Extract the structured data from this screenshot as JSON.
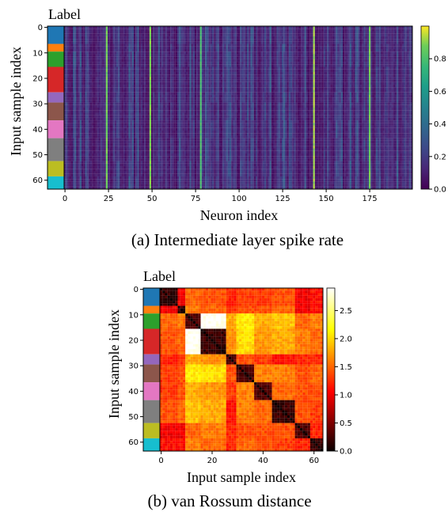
{
  "chart_data": [
    {
      "type": "heatmap",
      "title": "(a) Intermediate layer spike rate",
      "label_strip_title": "Label",
      "xlabel": "Neuron index",
      "ylabel": "Input sample index",
      "xlim": [
        -0.5,
        199.5
      ],
      "ylim": [
        63.5,
        -0.5
      ],
      "xticks": [
        "0",
        "25",
        "50",
        "75",
        "100",
        "125",
        "150",
        "175"
      ],
      "yticks": [
        "0",
        "10",
        "20",
        "30",
        "40",
        "50",
        "60"
      ],
      "colorbar": {
        "colormap": "viridis",
        "range": [
          0,
          1
        ],
        "ticks": [
          "0.0",
          "0.2",
          "0.4",
          "0.6",
          "0.8"
        ]
      },
      "matrix_size": [
        64,
        200
      ],
      "bright_columns": [
        {
          "neuron": 24,
          "rate": 0.9
        },
        {
          "neuron": 49,
          "rate": 0.92
        },
        {
          "neuron": 78,
          "rate": 0.82
        },
        {
          "neuron": 143,
          "rate": 0.95
        },
        {
          "neuron": 175,
          "rate": 0.9
        }
      ],
      "background_rate": 0.15,
      "grid": false
    },
    {
      "type": "heatmap",
      "title": "(b) van Rossum distance",
      "label_strip_title": "Label",
      "xlabel": "Input sample index",
      "ylabel": "Input sample index",
      "xlim": [
        -0.5,
        63.5
      ],
      "ylim": [
        63.5,
        -0.5
      ],
      "xticks": [
        "0",
        "20",
        "40",
        "60"
      ],
      "yticks": [
        "0",
        "10",
        "20",
        "30",
        "40",
        "50",
        "60"
      ],
      "colorbar": {
        "colormap": "hot",
        "range": [
          0,
          2.9
        ],
        "ticks": [
          "0.0",
          "0.5",
          "1.0",
          "1.5",
          "2.0",
          "2.5"
        ]
      },
      "matrix_size": [
        64,
        64
      ],
      "grid": false
    }
  ],
  "class_groups": [
    {
      "start": 0,
      "end": 7,
      "color": "#1f77b4"
    },
    {
      "start": 7,
      "end": 10,
      "color": "#ff7f0e"
    },
    {
      "start": 10,
      "end": 16,
      "color": "#2ca02c"
    },
    {
      "start": 16,
      "end": 26,
      "color": "#d62728"
    },
    {
      "start": 26,
      "end": 30,
      "color": "#9467bd"
    },
    {
      "start": 30,
      "end": 37,
      "color": "#8c564b"
    },
    {
      "start": 37,
      "end": 44,
      "color": "#e377c2"
    },
    {
      "start": 44,
      "end": 53,
      "color": "#7f7f7f"
    },
    {
      "start": 53,
      "end": 59,
      "color": "#bcbd22"
    },
    {
      "start": 59,
      "end": 64,
      "color": "#17becf"
    }
  ],
  "class_distance_matrix": [
    [
      0.2,
      1.0,
      1.5,
      1.4,
      1.2,
      1.3,
      1.3,
      1.4,
      1.0,
      1.1
    ],
    [
      1.0,
      0.2,
      1.6,
      1.5,
      1.3,
      1.4,
      1.4,
      1.5,
      1.0,
      1.1
    ],
    [
      1.5,
      1.6,
      0.3,
      2.9,
      1.8,
      2.1,
      1.8,
      1.9,
      1.5,
      1.6
    ],
    [
      1.4,
      1.5,
      2.9,
      0.2,
      1.7,
      2.0,
      1.7,
      1.8,
      1.6,
      1.5
    ],
    [
      1.2,
      1.3,
      1.8,
      1.7,
      0.3,
      1.4,
      1.3,
      1.1,
      1.2,
      1.2
    ],
    [
      1.3,
      1.4,
      2.1,
      2.0,
      1.4,
      0.3,
      1.6,
      1.6,
      1.4,
      1.5
    ],
    [
      1.3,
      1.4,
      1.8,
      1.7,
      1.3,
      1.6,
      0.3,
      1.5,
      1.4,
      1.4
    ],
    [
      1.4,
      1.5,
      1.9,
      1.8,
      1.1,
      1.6,
      1.5,
      0.2,
      1.4,
      1.3
    ],
    [
      1.0,
      1.0,
      1.5,
      1.6,
      1.2,
      1.4,
      1.4,
      1.4,
      0.3,
      1.2
    ],
    [
      1.1,
      1.1,
      1.6,
      1.5,
      1.2,
      1.5,
      1.4,
      1.3,
      1.2,
      0.2
    ]
  ]
}
